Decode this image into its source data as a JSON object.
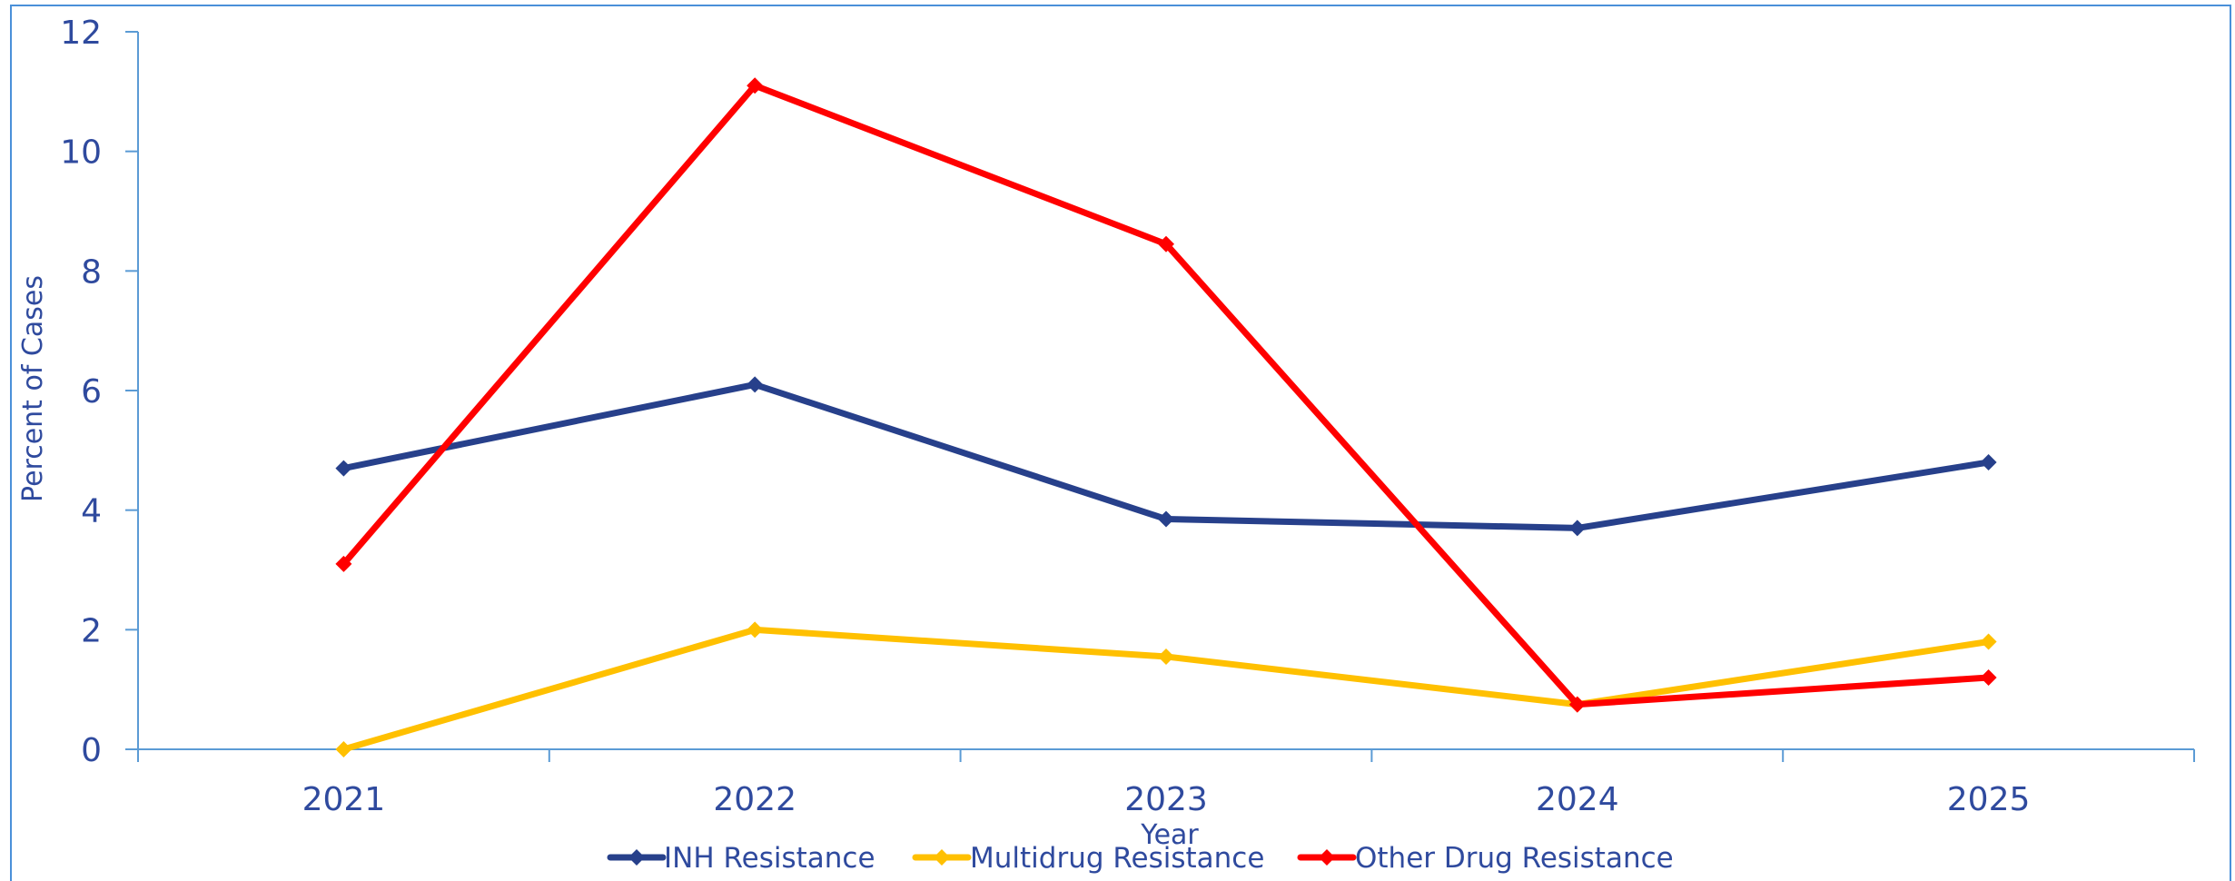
{
  "chart_data": {
    "type": "line",
    "title": "",
    "xlabel": "Year",
    "ylabel": "Percent of Cases",
    "categories": [
      "2021",
      "2022",
      "2023",
      "2024",
      "2025"
    ],
    "ylim": [
      0,
      12
    ],
    "yticks": [
      "0",
      "2",
      "4",
      "6",
      "8",
      "10",
      "12"
    ],
    "grid": false,
    "legend_position": "bottom",
    "series": [
      {
        "name": "INH Resistance",
        "color": "#27408b",
        "values": [
          4.7,
          6.1,
          3.85,
          3.7,
          4.8
        ]
      },
      {
        "name": "Multidrug Resistance",
        "color": "#ffc000",
        "values": [
          0.0,
          2.0,
          1.55,
          0.75,
          1.8
        ]
      },
      {
        "name": "Other Drug Resistance",
        "color": "#ff0000",
        "values": [
          3.1,
          11.1,
          8.45,
          0.75,
          1.2
        ]
      }
    ]
  }
}
